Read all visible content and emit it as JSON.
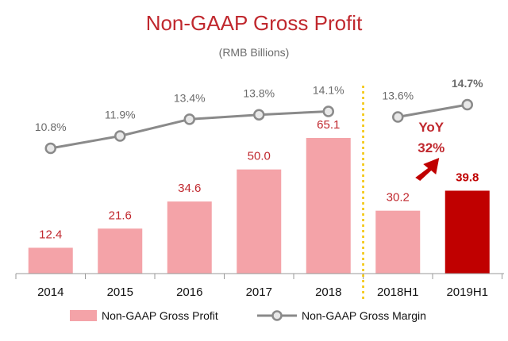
{
  "chart_data": {
    "type": "bar",
    "title": "Non-GAAP Gross Profit",
    "subtitle": "(RMB Billions)",
    "categories": [
      "2014",
      "2015",
      "2016",
      "2017",
      "2018",
      "2018H1",
      "2019H1"
    ],
    "series": [
      {
        "name": "Non-GAAP Gross Profit",
        "type": "bar",
        "values": [
          12.4,
          21.6,
          34.6,
          50.0,
          65.1,
          30.2,
          39.8
        ],
        "labels": [
          "12.4",
          "21.6",
          "34.6",
          "50.0",
          "65.1",
          "30.2",
          "39.8"
        ]
      },
      {
        "name": "Non-GAAP Gross Margin",
        "type": "line",
        "values": [
          10.8,
          11.9,
          13.4,
          13.8,
          14.1,
          13.6,
          14.7
        ],
        "labels": [
          "10.8%",
          "11.9%",
          "13.4%",
          "13.8%",
          "14.1%",
          "13.6%",
          "14.7%"
        ]
      }
    ],
    "annotation": {
      "line1": "YoY",
      "line2": "32%"
    },
    "legend": {
      "position": "bottom"
    },
    "grid": false,
    "colors": {
      "bar": "#f4a3a8",
      "bar_highlight": "#c00000",
      "line": "#8a8a8a",
      "marker_fill": "#e8e8e8",
      "title": "#c0282e",
      "bar_label": "#c0282e",
      "divider": "#f3c400",
      "axis": "#999999"
    }
  }
}
